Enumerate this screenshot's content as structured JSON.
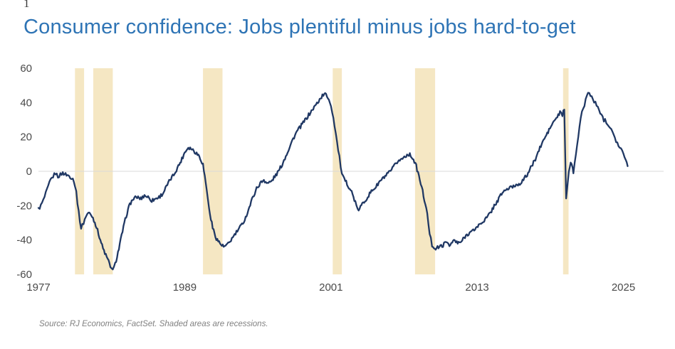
{
  "artifact": "1",
  "chart_data": {
    "type": "line",
    "title": "Consumer confidence: Jobs plentiful minus jobs hard-to-get",
    "source": "Source: RJ Economics, FactSet. Shaded areas are recessions.",
    "xlabel": "",
    "ylabel": "",
    "x_range": [
      1977,
      2028.3
    ],
    "y_range": [
      -60,
      60
    ],
    "x_ticks": [
      1977,
      1989,
      2001,
      2013,
      2025
    ],
    "y_ticks": [
      60,
      40,
      20,
      0,
      -20,
      -40,
      -60
    ],
    "grid": "zero-line-only",
    "legend": "none",
    "line_color": "#203864",
    "band_color": "#F5E7C3",
    "grid_color": "#D9D9D9",
    "axis_label_color": "#4a4a4a",
    "recessions": [
      [
        1980.0,
        1980.75
      ],
      [
        1981.5,
        1983.1
      ],
      [
        1990.5,
        1992.1
      ],
      [
        2001.15,
        2001.9
      ],
      [
        2007.9,
        2009.55
      ],
      [
        2020.05,
        2020.5
      ]
    ],
    "series": [
      {
        "name": "Jobs plentiful minus jobs hard-to-get",
        "points": [
          [
            1977.0,
            -22
          ],
          [
            1977.2,
            -20
          ],
          [
            1977.4,
            -17
          ],
          [
            1977.6,
            -13
          ],
          [
            1977.8,
            -9
          ],
          [
            1978.0,
            -5
          ],
          [
            1978.2,
            -3
          ],
          [
            1978.4,
            -1
          ],
          [
            1978.6,
            -3
          ],
          [
            1978.8,
            -2
          ],
          [
            1979.0,
            -1
          ],
          [
            1979.3,
            -2
          ],
          [
            1979.6,
            -3
          ],
          [
            1979.9,
            -5
          ],
          [
            1980.1,
            -12
          ],
          [
            1980.3,
            -24
          ],
          [
            1980.5,
            -33
          ],
          [
            1980.7,
            -30
          ],
          [
            1980.9,
            -26
          ],
          [
            1981.1,
            -24
          ],
          [
            1981.4,
            -26
          ],
          [
            1981.7,
            -31
          ],
          [
            1982.0,
            -38
          ],
          [
            1982.3,
            -45
          ],
          [
            1982.6,
            -50
          ],
          [
            1982.9,
            -55
          ],
          [
            1983.1,
            -58
          ],
          [
            1983.3,
            -54
          ],
          [
            1983.6,
            -45
          ],
          [
            1983.9,
            -35
          ],
          [
            1984.2,
            -26
          ],
          [
            1984.5,
            -19
          ],
          [
            1984.8,
            -16
          ],
          [
            1985.1,
            -15
          ],
          [
            1985.4,
            -16
          ],
          [
            1985.7,
            -14
          ],
          [
            1986.0,
            -15
          ],
          [
            1986.3,
            -17
          ],
          [
            1986.6,
            -16
          ],
          [
            1986.9,
            -15
          ],
          [
            1987.2,
            -13
          ],
          [
            1987.5,
            -9
          ],
          [
            1987.8,
            -5
          ],
          [
            1988.1,
            -2
          ],
          [
            1988.4,
            2
          ],
          [
            1988.7,
            6
          ],
          [
            1989.0,
            11
          ],
          [
            1989.3,
            14
          ],
          [
            1989.6,
            13
          ],
          [
            1989.9,
            11
          ],
          [
            1990.2,
            9
          ],
          [
            1990.5,
            4
          ],
          [
            1990.8,
            -10
          ],
          [
            1991.0,
            -22
          ],
          [
            1991.3,
            -33
          ],
          [
            1991.6,
            -39
          ],
          [
            1991.9,
            -42
          ],
          [
            1992.2,
            -44
          ],
          [
            1992.5,
            -43
          ],
          [
            1992.8,
            -40
          ],
          [
            1993.1,
            -37
          ],
          [
            1993.4,
            -34
          ],
          [
            1993.7,
            -31
          ],
          [
            1994.0,
            -27
          ],
          [
            1994.3,
            -21
          ],
          [
            1994.6,
            -15
          ],
          [
            1994.9,
            -10
          ],
          [
            1995.2,
            -7
          ],
          [
            1995.5,
            -5
          ],
          [
            1995.8,
            -7
          ],
          [
            1996.1,
            -6
          ],
          [
            1996.4,
            -3
          ],
          [
            1996.7,
            0
          ],
          [
            1997.0,
            4
          ],
          [
            1997.3,
            9
          ],
          [
            1997.6,
            14
          ],
          [
            1997.9,
            19
          ],
          [
            1998.2,
            23
          ],
          [
            1998.5,
            26
          ],
          [
            1998.8,
            29
          ],
          [
            1999.1,
            32
          ],
          [
            1999.4,
            35
          ],
          [
            1999.7,
            38
          ],
          [
            2000.0,
            41
          ],
          [
            2000.3,
            44
          ],
          [
            2000.6,
            45
          ],
          [
            2000.9,
            41
          ],
          [
            2001.1,
            35
          ],
          [
            2001.3,
            27
          ],
          [
            2001.5,
            17
          ],
          [
            2001.7,
            8
          ],
          [
            2001.9,
            -2
          ],
          [
            2002.1,
            -5
          ],
          [
            2002.4,
            -8
          ],
          [
            2002.7,
            -12
          ],
          [
            2003.0,
            -18
          ],
          [
            2003.2,
            -23
          ],
          [
            2003.5,
            -20
          ],
          [
            2003.8,
            -17
          ],
          [
            2004.1,
            -14
          ],
          [
            2004.4,
            -11
          ],
          [
            2004.7,
            -9
          ],
          [
            2005.0,
            -6
          ],
          [
            2005.3,
            -4
          ],
          [
            2005.6,
            -2
          ],
          [
            2005.9,
            0
          ],
          [
            2006.2,
            3
          ],
          [
            2006.5,
            6
          ],
          [
            2006.8,
            7
          ],
          [
            2007.1,
            9
          ],
          [
            2007.4,
            10
          ],
          [
            2007.7,
            8
          ],
          [
            2008.0,
            3
          ],
          [
            2008.3,
            -5
          ],
          [
            2008.6,
            -14
          ],
          [
            2008.9,
            -25
          ],
          [
            2009.1,
            -36
          ],
          [
            2009.3,
            -43
          ],
          [
            2009.6,
            -45
          ],
          [
            2009.9,
            -44
          ],
          [
            2010.2,
            -43
          ],
          [
            2010.5,
            -41
          ],
          [
            2010.8,
            -43
          ],
          [
            2011.1,
            -40
          ],
          [
            2011.4,
            -42
          ],
          [
            2011.7,
            -41
          ],
          [
            2012.0,
            -38
          ],
          [
            2012.3,
            -36
          ],
          [
            2012.6,
            -35
          ],
          [
            2012.9,
            -33
          ],
          [
            2013.2,
            -31
          ],
          [
            2013.5,
            -29
          ],
          [
            2013.8,
            -27
          ],
          [
            2014.1,
            -24
          ],
          [
            2014.4,
            -20
          ],
          [
            2014.7,
            -17
          ],
          [
            2015.0,
            -13
          ],
          [
            2015.3,
            -11
          ],
          [
            2015.6,
            -10
          ],
          [
            2015.9,
            -9
          ],
          [
            2016.2,
            -8
          ],
          [
            2016.5,
            -7
          ],
          [
            2016.8,
            -5
          ],
          [
            2017.1,
            -2
          ],
          [
            2017.4,
            2
          ],
          [
            2017.7,
            6
          ],
          [
            2018.0,
            11
          ],
          [
            2018.3,
            16
          ],
          [
            2018.6,
            20
          ],
          [
            2018.9,
            24
          ],
          [
            2019.2,
            28
          ],
          [
            2019.5,
            31
          ],
          [
            2019.8,
            34
          ],
          [
            2020.0,
            33
          ],
          [
            2020.15,
            36
          ],
          [
            2020.3,
            -16
          ],
          [
            2020.45,
            -5
          ],
          [
            2020.6,
            3
          ],
          [
            2020.75,
            5
          ],
          [
            2020.9,
            -1
          ],
          [
            2021.0,
            6
          ],
          [
            2021.2,
            15
          ],
          [
            2021.4,
            26
          ],
          [
            2021.6,
            34
          ],
          [
            2021.8,
            39
          ],
          [
            2022.0,
            44
          ],
          [
            2022.2,
            46
          ],
          [
            2022.4,
            43
          ],
          [
            2022.6,
            41
          ],
          [
            2022.8,
            38
          ],
          [
            2023.0,
            36
          ],
          [
            2023.2,
            33
          ],
          [
            2023.4,
            30
          ],
          [
            2023.6,
            29
          ],
          [
            2023.8,
            27
          ],
          [
            2024.0,
            25
          ],
          [
            2024.2,
            22
          ],
          [
            2024.4,
            18
          ],
          [
            2024.6,
            15
          ],
          [
            2024.8,
            13
          ],
          [
            2025.0,
            10
          ],
          [
            2025.2,
            6
          ],
          [
            2025.35,
            3
          ]
        ]
      }
    ]
  }
}
